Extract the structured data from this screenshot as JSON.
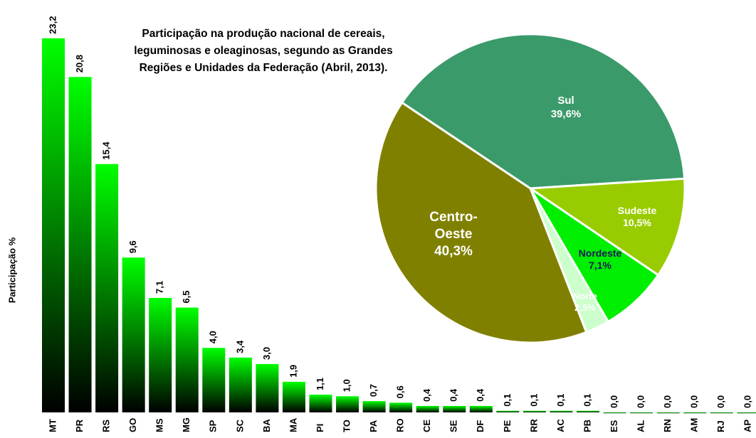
{
  "chart_data": [
    {
      "type": "bar",
      "title": "Participação na produção nacional de cereais, leguminosas e oleaginosas, segundo as Grandes Regiões e Unidades da Federação (Abril, 2013).",
      "y_label": "Participação %",
      "categories": [
        "MT",
        "PR",
        "RS",
        "GO",
        "MS",
        "MG",
        "SP",
        "SC",
        "BA",
        "MA",
        "PI",
        "TO",
        "PA",
        "RO",
        "CE",
        "SE",
        "DF",
        "PE",
        "RR",
        "AC",
        "PB",
        "ES",
        "AL",
        "RN",
        "AM",
        "RJ",
        "AP"
      ],
      "values": [
        23.2,
        20.8,
        15.4,
        9.6,
        7.1,
        6.5,
        4.0,
        3.4,
        3.0,
        1.9,
        1.1,
        1.0,
        0.7,
        0.6,
        0.4,
        0.4,
        0.4,
        0.1,
        0.1,
        0.1,
        0.1,
        0.0,
        0.0,
        0.0,
        0.0,
        0.0,
        0.0
      ],
      "value_labels": [
        "23,2",
        "20,8",
        "15,4",
        "9,6",
        "7,1",
        "6,5",
        "4,0",
        "3,4",
        "3,0",
        "1,9",
        "1,1",
        "1,0",
        "0,7",
        "0,6",
        "0,4",
        "0,4",
        "0,4",
        "0,1",
        "0,1",
        "0,1",
        "0,1",
        "0,0",
        "0,0",
        "0,0",
        "0,0",
        "0,0",
        "0,0"
      ],
      "color": "#00ff00",
      "ylim": [
        0,
        25
      ]
    },
    {
      "type": "pie",
      "categories": [
        "Sul",
        "Sudeste",
        "Nordeste",
        "Norte",
        "Centro-Oeste"
      ],
      "values": [
        39.6,
        10.5,
        7.1,
        2.5,
        40.3
      ],
      "value_labels": [
        "39,6%",
        "10,5%",
        "7,1%",
        "2,5%",
        "40,3%"
      ],
      "colors": [
        "#3a9a6a",
        "#99cc00",
        "#00ee00",
        "#ccffcc",
        "#808000"
      ]
    }
  ]
}
